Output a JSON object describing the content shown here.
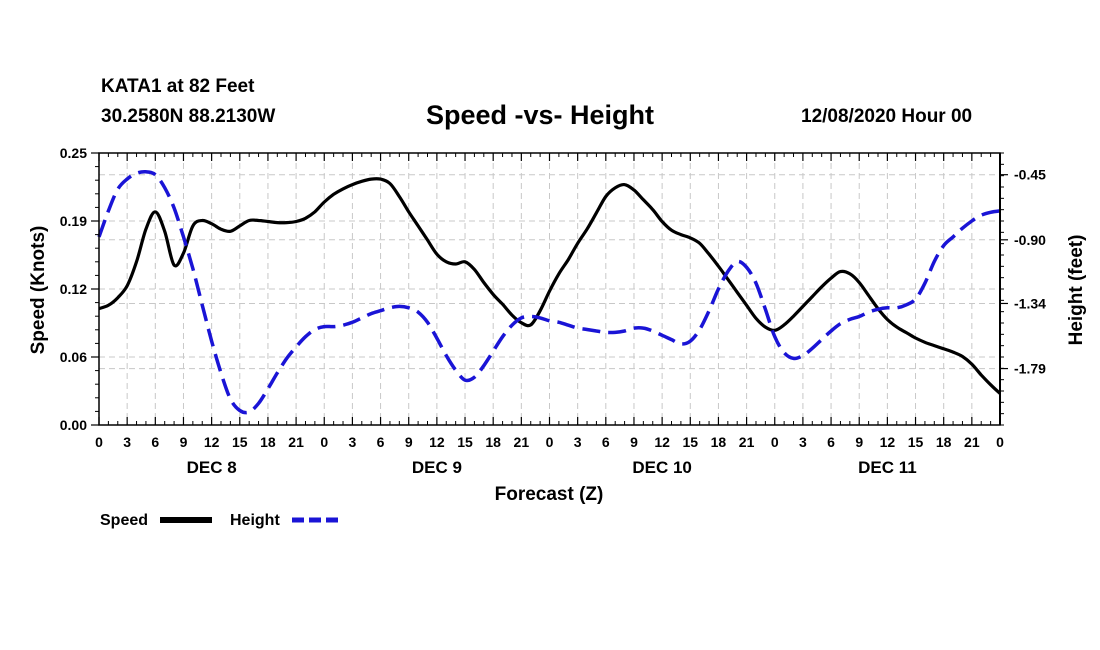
{
  "header": {
    "station": "KATA1 at 82 Feet",
    "coords": "30.2580N 88.2130W",
    "title": "Speed -vs- Height",
    "datetime": "12/08/2020 Hour 00"
  },
  "legend": {
    "speed_label": "Speed",
    "height_label": "Height"
  },
  "colors": {
    "speed": "#000000",
    "height": "#1a14d6",
    "grid": "#c8c8c8"
  },
  "chart_data": {
    "type": "line",
    "title": "Speed -vs- Height",
    "xlabel": "Forecast (Z)",
    "ylabel": "Speed (Knots)",
    "y2label": "Height (feet)",
    "xlim": [
      0,
      96
    ],
    "ylim": [
      0,
      0.25
    ],
    "y2lim": [
      -2.18,
      -0.3
    ],
    "grid": true,
    "legend_position": "bottom-left",
    "yticks": [
      "0.00",
      "0.06",
      "0.12",
      "0.19",
      "0.25"
    ],
    "ytick_values": [
      0.0,
      0.0625,
      0.125,
      0.1875,
      0.25
    ],
    "y2ticks": [
      "-0.45",
      "-0.90",
      "-1.34",
      "-1.79"
    ],
    "y2tick_values": [
      -0.45,
      -0.9,
      -1.34,
      -1.79
    ],
    "xtick_hours": [
      0,
      3,
      6,
      9,
      12,
      15,
      18,
      21,
      24,
      27,
      30,
      33,
      36,
      39,
      42,
      45,
      48,
      51,
      54,
      57,
      60,
      63,
      66,
      69,
      72,
      75,
      78,
      81,
      84,
      87,
      90,
      93,
      96
    ],
    "xtick_labels": [
      "0",
      "3",
      "6",
      "9",
      "12",
      "15",
      "18",
      "21",
      "0",
      "3",
      "6",
      "9",
      "12",
      "15",
      "18",
      "21",
      "0",
      "3",
      "6",
      "9",
      "12",
      "15",
      "18",
      "21",
      "0",
      "3",
      "6",
      "9",
      "12",
      "15",
      "18",
      "21",
      "0"
    ],
    "day_labels": [
      {
        "label": "DEC 8",
        "hour": 12
      },
      {
        "label": "DEC 9",
        "hour": 36
      },
      {
        "label": "DEC 10",
        "hour": 60
      },
      {
        "label": "DEC 11",
        "hour": 84
      }
    ],
    "series": [
      {
        "name": "Speed",
        "axis": "left",
        "style": "solid",
        "x": [
          0,
          1,
          2,
          3,
          4,
          5,
          6,
          7,
          8,
          9,
          10,
          11,
          12,
          13,
          14,
          15,
          16,
          17,
          18,
          19,
          20,
          21,
          22,
          23,
          24,
          25,
          26,
          27,
          28,
          29,
          30,
          31,
          32,
          33,
          34,
          35,
          36,
          37,
          38,
          39,
          40,
          41,
          42,
          43,
          44,
          45,
          46,
          47,
          48,
          49,
          50,
          51,
          52,
          53,
          54,
          55,
          56,
          57,
          58,
          59,
          60,
          61,
          62,
          63,
          64,
          65,
          66,
          67,
          68,
          69,
          70,
          71,
          72,
          73,
          74,
          75,
          76,
          77,
          78,
          79,
          80,
          81,
          82,
          83,
          84,
          85,
          86,
          87,
          88,
          89,
          90,
          91,
          92,
          93,
          94,
          95,
          96
        ],
        "values": [
          0.107,
          0.11,
          0.117,
          0.128,
          0.15,
          0.18,
          0.196,
          0.178,
          0.147,
          0.158,
          0.183,
          0.188,
          0.185,
          0.18,
          0.178,
          0.183,
          0.188,
          0.188,
          0.187,
          0.186,
          0.186,
          0.187,
          0.19,
          0.196,
          0.205,
          0.212,
          0.217,
          0.221,
          0.224,
          0.226,
          0.226,
          0.222,
          0.21,
          0.196,
          0.183,
          0.17,
          0.157,
          0.15,
          0.148,
          0.15,
          0.143,
          0.131,
          0.12,
          0.111,
          0.101,
          0.094,
          0.092,
          0.105,
          0.123,
          0.139,
          0.152,
          0.167,
          0.18,
          0.195,
          0.21,
          0.218,
          0.221,
          0.216,
          0.207,
          0.198,
          0.187,
          0.179,
          0.175,
          0.172,
          0.167,
          0.157,
          0.146,
          0.134,
          0.122,
          0.11,
          0.098,
          0.09,
          0.087,
          0.092,
          0.1,
          0.109,
          0.118,
          0.127,
          0.135,
          0.141,
          0.139,
          0.131,
          0.119,
          0.107,
          0.097,
          0.09,
          0.085,
          0.08,
          0.076,
          0.073,
          0.07,
          0.067,
          0.063,
          0.056,
          0.046,
          0.037,
          0.029
        ]
      },
      {
        "name": "Height",
        "axis": "right",
        "style": "dashed",
        "x": [
          0,
          1,
          2,
          3,
          4,
          5,
          6,
          7,
          8,
          9,
          10,
          11,
          12,
          13,
          14,
          15,
          16,
          17,
          18,
          19,
          20,
          21,
          22,
          23,
          24,
          25,
          26,
          27,
          28,
          29,
          30,
          31,
          32,
          33,
          34,
          35,
          36,
          37,
          38,
          39,
          40,
          41,
          42,
          43,
          44,
          45,
          46,
          47,
          48,
          49,
          50,
          51,
          52,
          53,
          54,
          55,
          56,
          57,
          58,
          59,
          60,
          61,
          62,
          63,
          64,
          65,
          66,
          67,
          68,
          69,
          70,
          71,
          72,
          73,
          74,
          75,
          76,
          77,
          78,
          79,
          80,
          81,
          82,
          83,
          84,
          85,
          86,
          87,
          88,
          89,
          90,
          91,
          92,
          93,
          94,
          95,
          96
        ],
        "values": [
          -0.88,
          -0.7,
          -0.55,
          -0.48,
          -0.44,
          -0.43,
          -0.45,
          -0.54,
          -0.68,
          -0.88,
          -1.1,
          -1.35,
          -1.6,
          -1.82,
          -2.0,
          -2.08,
          -2.09,
          -2.03,
          -1.93,
          -1.82,
          -1.72,
          -1.64,
          -1.57,
          -1.52,
          -1.5,
          -1.5,
          -1.49,
          -1.47,
          -1.44,
          -1.41,
          -1.39,
          -1.37,
          -1.36,
          -1.37,
          -1.4,
          -1.47,
          -1.58,
          -1.7,
          -1.8,
          -1.87,
          -1.85,
          -1.77,
          -1.67,
          -1.57,
          -1.49,
          -1.44,
          -1.43,
          -1.44,
          -1.46,
          -1.47,
          -1.49,
          -1.51,
          -1.52,
          -1.53,
          -1.54,
          -1.54,
          -1.53,
          -1.51,
          -1.51,
          -1.53,
          -1.56,
          -1.59,
          -1.62,
          -1.6,
          -1.52,
          -1.39,
          -1.24,
          -1.12,
          -1.05,
          -1.09,
          -1.2,
          -1.38,
          -1.57,
          -1.68,
          -1.72,
          -1.7,
          -1.65,
          -1.59,
          -1.53,
          -1.48,
          -1.45,
          -1.43,
          -1.4,
          -1.38,
          -1.37,
          -1.37,
          -1.35,
          -1.31,
          -1.2,
          -1.05,
          -0.94,
          -0.88,
          -0.82,
          -0.77,
          -0.73,
          -0.71,
          -0.7
        ]
      }
    ]
  }
}
